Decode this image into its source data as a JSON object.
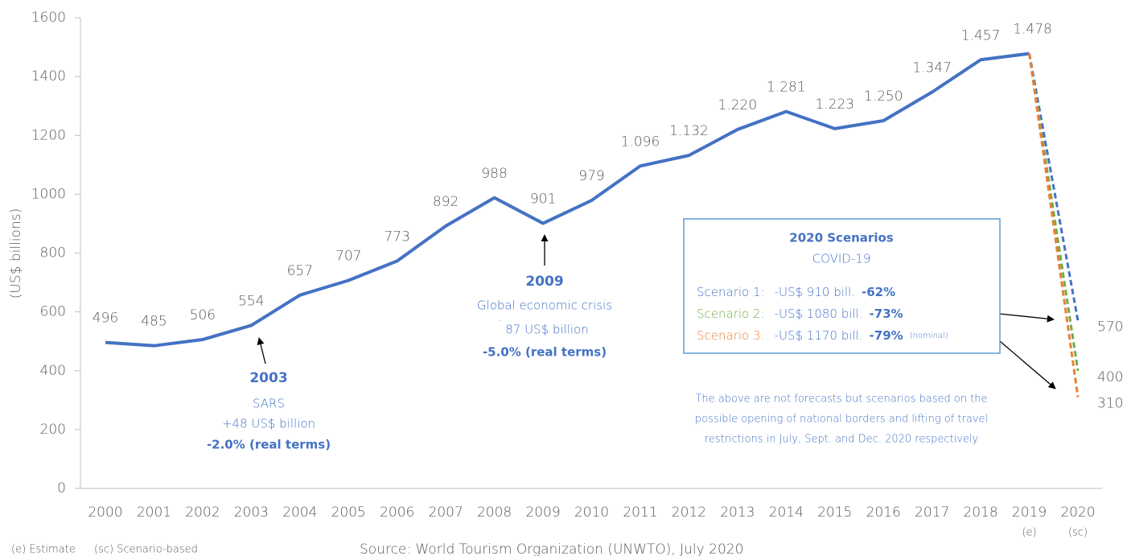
{
  "chart_data": {
    "type": "line",
    "y_label": "(US$ billions)",
    "categories": [
      "2000",
      "2001",
      "2002",
      "2003",
      "2004",
      "2005",
      "2006",
      "2007",
      "2008",
      "2009",
      "2010",
      "2011",
      "2012",
      "2013",
      "2014",
      "2015",
      "2016",
      "2017",
      "2018",
      "2019",
      "2020"
    ],
    "category_notes": [
      null,
      null,
      null,
      null,
      null,
      null,
      null,
      null,
      null,
      null,
      null,
      null,
      null,
      null,
      null,
      null,
      null,
      null,
      null,
      "(e)",
      "(sc)"
    ],
    "series": [
      {
        "color": "#4472c4",
        "style": "solid",
        "values": [
          496,
          485,
          506,
          554,
          657,
          707,
          773,
          892,
          988,
          901,
          979,
          1096,
          1132,
          1220,
          1281,
          1223,
          1250,
          1347,
          1457,
          1478,
          null
        ],
        "value_labels": [
          "496",
          "485",
          "506",
          "554",
          "657",
          "707",
          "773",
          "892",
          "988",
          "901",
          "979",
          "1.096",
          "1.132",
          "1.220",
          "1.281",
          "1.223",
          "1.250",
          "1.347",
          "1.457",
          "1.478",
          null
        ]
      },
      {
        "color": "#4472c4",
        "style": "dashed",
        "values": [
          null,
          null,
          null,
          null,
          null,
          null,
          null,
          null,
          null,
          null,
          null,
          null,
          null,
          null,
          null,
          null,
          null,
          null,
          null,
          1478,
          570
        ],
        "value_labels": [
          null,
          null,
          null,
          null,
          null,
          null,
          null,
          null,
          null,
          null,
          null,
          null,
          null,
          null,
          null,
          null,
          null,
          null,
          null,
          null,
          "570"
        ]
      },
      {
        "color": "#70ad47",
        "style": "dashed",
        "values": [
          null,
          null,
          null,
          null,
          null,
          null,
          null,
          null,
          null,
          null,
          null,
          null,
          null,
          null,
          null,
          null,
          null,
          null,
          null,
          1478,
          400
        ],
        "value_labels": [
          null,
          null,
          null,
          null,
          null,
          null,
          null,
          null,
          null,
          null,
          null,
          null,
          null,
          null,
          null,
          null,
          null,
          null,
          null,
          null,
          "400"
        ]
      },
      {
        "color": "#ed7d31",
        "style": "dashed",
        "values": [
          null,
          null,
          null,
          null,
          null,
          null,
          null,
          null,
          null,
          null,
          null,
          null,
          null,
          null,
          null,
          null,
          null,
          null,
          null,
          1478,
          310
        ],
        "value_labels": [
          null,
          null,
          null,
          null,
          null,
          null,
          null,
          null,
          null,
          null,
          null,
          null,
          null,
          null,
          null,
          null,
          null,
          null,
          null,
          null,
          "310"
        ]
      }
    ],
    "ylim": [
      0,
      1600
    ],
    "yticks": [
      0,
      200,
      400,
      600,
      800,
      1000,
      1200,
      1400,
      1600
    ],
    "annotations": {
      "sars": [
        "2003",
        "SARS",
        "+48 US$ billion",
        "-2.0% (real terms)"
      ],
      "crisis": [
        "2009",
        "Global economic crisis",
        "-",
        "87 US$ billion",
        "-5.0% (real terms)"
      ],
      "scenarios": {
        "title": "2020 Scenarios",
        "subtitle": "COVID-19",
        "rows": [
          [
            "Scenario 1:",
            "-US$  910 bill.",
            "-62%"
          ],
          [
            "Scenario 2:",
            "-US$ 1080 bill.",
            "-73%"
          ],
          [
            "Scenario 3:",
            "-US$ 1170 bill.",
            "-79%",
            "(nominal)"
          ]
        ]
      },
      "note": [
        "The above are not forecasts but scenarios based on the",
        "possible opening of national borders and lifting of travel",
        "restrictions in July, Sept. and Dec. 2020 respectively"
      ]
    },
    "footer": {
      "legend": [
        "(e) Estimate",
        "(sc) Scenario-based"
      ],
      "source": "Source: World Tourism Organization (UNWTO), July 2020"
    }
  }
}
